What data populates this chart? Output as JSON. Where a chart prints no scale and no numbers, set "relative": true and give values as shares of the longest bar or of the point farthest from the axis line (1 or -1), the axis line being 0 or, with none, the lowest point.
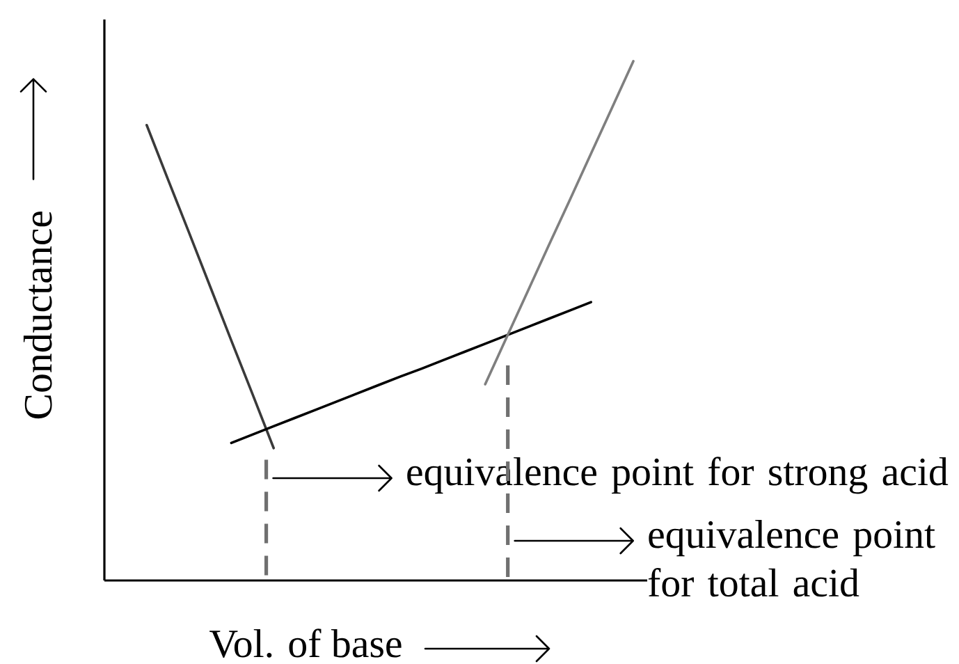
{
  "chart_data": {
    "type": "line",
    "relative": true,
    "xlabel": "Vol. of base",
    "ylabel": "Conductance",
    "categories": [
      null,
      null,
      null,
      null,
      null,
      null,
      null,
      null,
      null,
      null,
      null,
      null,
      null,
      null,
      null,
      null,
      null,
      null,
      null,
      null,
      null,
      null,
      null,
      null,
      null,
      null
    ],
    "series": [
      {
        "color": "#3a3a3a",
        "values": [
          null,
          null,
          0.877,
          0.773,
          0.67,
          0.566,
          0.462,
          0.359,
          0.255,
          null,
          null,
          null,
          null,
          null,
          null,
          null,
          null,
          null,
          null,
          null,
          null,
          null,
          null,
          null,
          null,
          null
        ]
      },
      {
        "color": "#000000",
        "values": [
          null,
          null,
          null,
          null,
          null,
          null,
          0.265,
          0.281,
          0.297,
          0.313,
          0.329,
          0.345,
          0.361,
          0.377,
          0.393,
          0.408,
          0.424,
          0.44,
          0.456,
          0.472,
          0.488,
          0.504,
          0.52,
          0.536,
          null,
          null
        ]
      },
      {
        "color": "#7f7f7f",
        "values": [
          null,
          null,
          null,
          null,
          null,
          null,
          null,
          null,
          null,
          null,
          null,
          null,
          null,
          null,
          null,
          null,
          null,
          null,
          0.378,
          0.467,
          0.556,
          0.645,
          0.733,
          0.822,
          0.911,
          1
        ]
      }
    ],
    "annotations": [
      "equivalence point for strong acid",
      "equivalence point for total acid"
    ]
  }
}
